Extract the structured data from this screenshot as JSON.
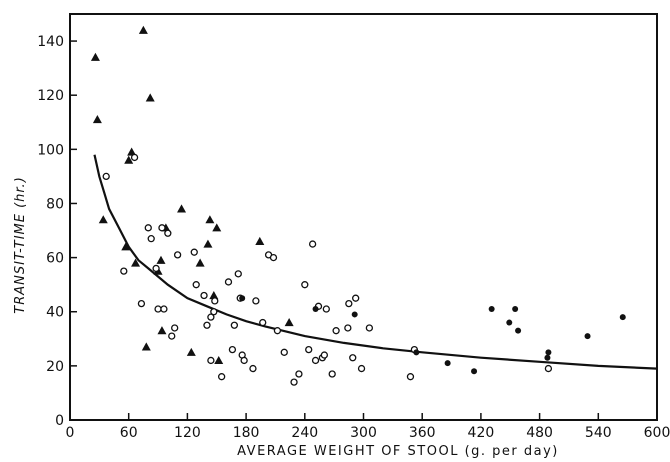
{
  "chart_data": {
    "type": "scatter",
    "title": "",
    "xlabel": "AVERAGE WEIGHT OF STOOL (g. per day)",
    "ylabel": "TRANSIT-TIME (hr.)",
    "xlim": [
      0,
      600
    ],
    "ylim": [
      0,
      150
    ],
    "xticks": [
      "0",
      "60",
      "120",
      "180",
      "240",
      "300",
      "360",
      "420",
      "480",
      "540",
      "600"
    ],
    "yticks": [
      "0",
      "20",
      "40",
      "60",
      "80",
      "100",
      "120",
      "140"
    ],
    "grid": false,
    "series": [
      {
        "marker": "triangle-filled",
        "points": [
          [
            26,
            134
          ],
          [
            28,
            111
          ],
          [
            34,
            74
          ],
          [
            57,
            64
          ],
          [
            60,
            96
          ],
          [
            63,
            99
          ],
          [
            67,
            58
          ],
          [
            75,
            144
          ],
          [
            78,
            27
          ],
          [
            82,
            119
          ],
          [
            90,
            55
          ],
          [
            93,
            59
          ],
          [
            94,
            33
          ],
          [
            98,
            71
          ],
          [
            114,
            78
          ],
          [
            124,
            25
          ],
          [
            133,
            58
          ],
          [
            141,
            65
          ],
          [
            143,
            74
          ],
          [
            147,
            46
          ],
          [
            150,
            71
          ],
          [
            152,
            22
          ],
          [
            194,
            66
          ],
          [
            224,
            36
          ]
        ]
      },
      {
        "marker": "circle-open",
        "points": [
          [
            37,
            90
          ],
          [
            55,
            55
          ],
          [
            66,
            97
          ],
          [
            73,
            43
          ],
          [
            80,
            71
          ],
          [
            83,
            67
          ],
          [
            88,
            56
          ],
          [
            90,
            41
          ],
          [
            94,
            71
          ],
          [
            96,
            41
          ],
          [
            100,
            69
          ],
          [
            104,
            31
          ],
          [
            107,
            34
          ],
          [
            110,
            61
          ],
          [
            127,
            62
          ],
          [
            129,
            50
          ],
          [
            137,
            46
          ],
          [
            140,
            35
          ],
          [
            144,
            38
          ],
          [
            144,
            22
          ],
          [
            147,
            40
          ],
          [
            148,
            44
          ],
          [
            155,
            16
          ],
          [
            162,
            51
          ],
          [
            166,
            26
          ],
          [
            168,
            35
          ],
          [
            172,
            54
          ],
          [
            174,
            45
          ],
          [
            176,
            24
          ],
          [
            178,
            22
          ],
          [
            187,
            19
          ],
          [
            190,
            44
          ],
          [
            197,
            36
          ],
          [
            203,
            61
          ],
          [
            208,
            60
          ],
          [
            212,
            33
          ],
          [
            219,
            25
          ],
          [
            229,
            14
          ],
          [
            234,
            17
          ],
          [
            240,
            50
          ],
          [
            244,
            26
          ],
          [
            248,
            65
          ],
          [
            251,
            22
          ],
          [
            254,
            42
          ],
          [
            258,
            23
          ],
          [
            260,
            24
          ],
          [
            262,
            41
          ],
          [
            268,
            17
          ],
          [
            272,
            33
          ],
          [
            284,
            34
          ],
          [
            285,
            43
          ],
          [
            289,
            23
          ],
          [
            292,
            45
          ],
          [
            298,
            19
          ],
          [
            306,
            34
          ],
          [
            348,
            16
          ],
          [
            352,
            26
          ],
          [
            489,
            19
          ]
        ]
      },
      {
        "marker": "circle-filled",
        "points": [
          [
            176,
            45
          ],
          [
            251,
            41
          ],
          [
            291,
            39
          ],
          [
            354,
            25
          ],
          [
            386,
            21
          ],
          [
            413,
            18
          ],
          [
            431,
            41
          ],
          [
            449,
            36
          ],
          [
            455,
            41
          ],
          [
            458,
            33
          ],
          [
            488,
            23
          ],
          [
            489,
            25
          ],
          [
            529,
            31
          ],
          [
            565,
            38
          ]
        ]
      }
    ],
    "curve": {
      "style": "solid",
      "points": [
        [
          25,
          98
        ],
        [
          30,
          90
        ],
        [
          35,
          84
        ],
        [
          40,
          78
        ],
        [
          50,
          71
        ],
        [
          60,
          64
        ],
        [
          70,
          59
        ],
        [
          80,
          56
        ],
        [
          100,
          50
        ],
        [
          120,
          45
        ],
        [
          140,
          42
        ],
        [
          160,
          39
        ],
        [
          180,
          36.5
        ],
        [
          200,
          34.5
        ],
        [
          240,
          31
        ],
        [
          280,
          28.5
        ],
        [
          320,
          26.5
        ],
        [
          360,
          25
        ],
        [
          420,
          23
        ],
        [
          480,
          21.5
        ],
        [
          540,
          20
        ],
        [
          600,
          19
        ]
      ]
    }
  }
}
